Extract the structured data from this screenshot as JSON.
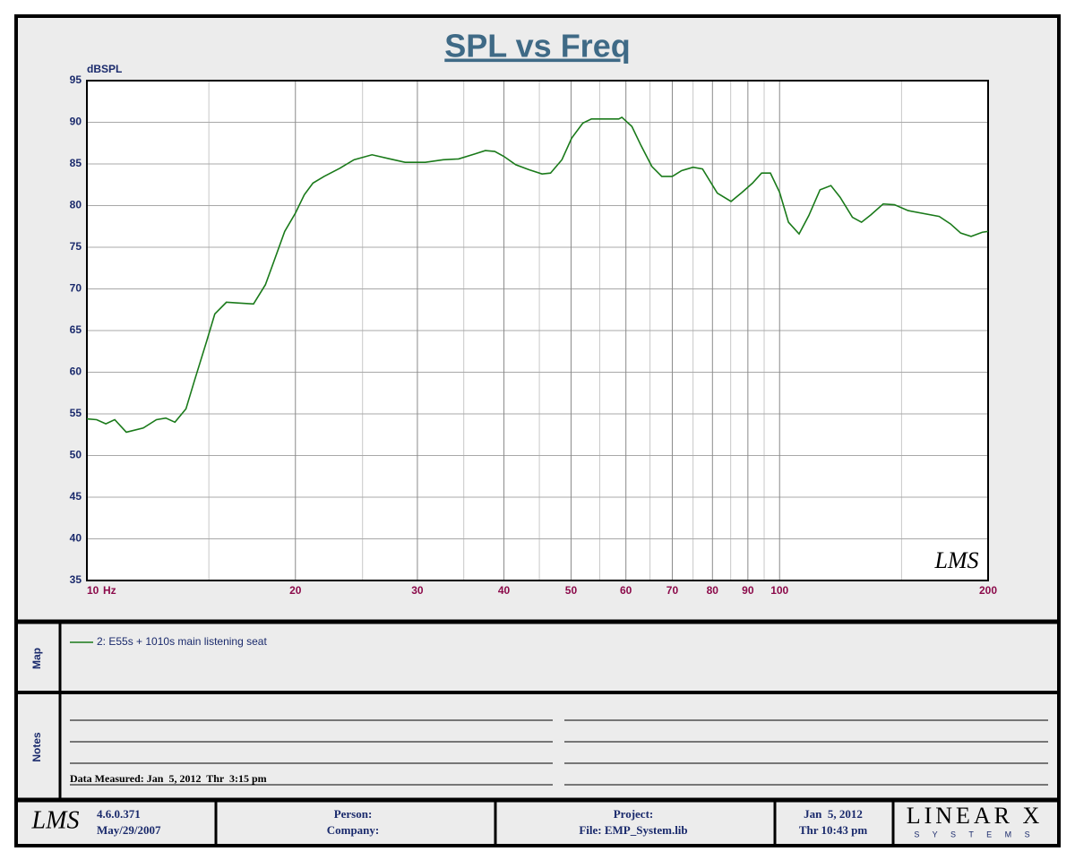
{
  "chart_data": {
    "type": "line",
    "title": "SPL vs Freq",
    "y_label": "dBSPL",
    "x_unit": "Hz",
    "watermark": "LMS",
    "xscale": "log",
    "xlim": [
      10,
      200
    ],
    "xticks": [
      10,
      20,
      30,
      40,
      50,
      60,
      70,
      80,
      90,
      100,
      200
    ],
    "minor_xticks": [
      15,
      25,
      35,
      45,
      55,
      65,
      75,
      85,
      95,
      150
    ],
    "ylim": [
      35,
      95
    ],
    "yticks": [
      35,
      40,
      45,
      50,
      55,
      60,
      65,
      70,
      75,
      80,
      85,
      90,
      95
    ],
    "grid": true,
    "x": [
      10,
      10.33,
      10.65,
      10.97,
      11.4,
      12.06,
      12.6,
      13.0,
      13.4,
      13.9,
      14.3,
      14.9,
      15.3,
      15.9,
      16.6,
      17.4,
      18.1,
      18.6,
      19.3,
      20.0,
      20.6,
      21.2,
      22.0,
      23.2,
      24.3,
      25.8,
      27.4,
      28.8,
      30.8,
      32.7,
      34.4,
      36.3,
      37.6,
      38.8,
      40.0,
      41.6,
      43.5,
      45.4,
      46.7,
      48.5,
      50.1,
      52.0,
      53.5,
      58.6,
      59.2,
      61.2,
      63.1,
      65.4,
      67.6,
      70.0,
      72.2,
      75.0,
      77.4,
      81.3,
      85.1,
      88.3,
      91.4,
      94.2,
      97.0,
      100,
      103,
      106.7,
      110.2,
      114.4,
      118.6,
      122.3,
      127.4,
      131.3,
      135.5,
      141.1,
      146.5,
      153.3,
      170.0,
      176.5,
      182.6,
      189.0,
      196.2,
      200
    ],
    "series": [
      {
        "name": "2: E55s + 1010s main listening seat",
        "color": "#1a7a1a",
        "values": [
          54.4,
          54.3,
          53.8,
          54.3,
          52.8,
          53.3,
          54.3,
          54.5,
          54.0,
          55.6,
          59.0,
          63.8,
          67.0,
          68.4,
          68.3,
          68.2,
          70.5,
          73.2,
          76.9,
          79.1,
          81.3,
          82.7,
          83.5,
          84.5,
          85.5,
          86.1,
          85.6,
          85.2,
          85.2,
          85.5,
          85.6,
          86.2,
          86.6,
          86.5,
          85.9,
          84.9,
          84.3,
          83.8,
          83.9,
          85.5,
          88.1,
          89.9,
          90.4,
          90.4,
          90.6,
          89.5,
          87.2,
          84.7,
          83.5,
          83.5,
          84.2,
          84.6,
          84.4,
          81.5,
          80.5,
          81.6,
          82.7,
          83.9,
          83.9,
          81.6,
          78.0,
          76.6,
          78.8,
          81.9,
          82.4,
          81.0,
          78.6,
          78.0,
          78.9,
          80.2,
          80.1,
          79.4,
          78.7,
          77.8,
          76.7,
          76.3,
          76.8,
          76.9
        ]
      }
    ]
  },
  "panels": {
    "map_label": "Map",
    "notes_label": "Notes",
    "data_measured": "Data Measured: Jan  5, 2012  Thr  3:15 pm"
  },
  "footer": {
    "logo": "LMS",
    "version": "4.6.0.371",
    "version_date": "May/29/2007",
    "person": "Person:",
    "company": "Company:",
    "project": "Project:",
    "file": "File: EMP_System.lib",
    "date": "Jan  5, 2012",
    "time": "Thr 10:43 pm",
    "brand": "LINEAR X",
    "brand_sub": "S Y S T E M S"
  }
}
